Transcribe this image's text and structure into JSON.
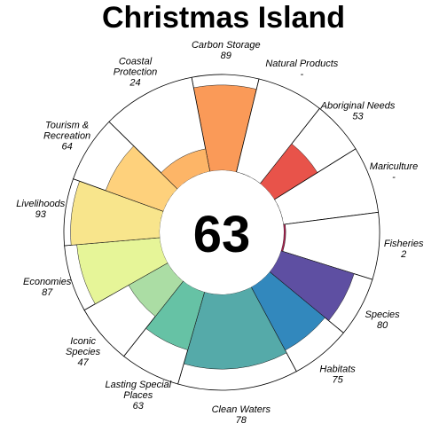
{
  "title": "Christmas Island",
  "chart_data": {
    "type": "flower",
    "title": "Christmas Island",
    "center_score": "63",
    "ylim": [
      0,
      100
    ],
    "petals": [
      {
        "lines": [
          "Carbon Storage"
        ],
        "score": "89",
        "value": 89,
        "weight": 1,
        "color": "#fa9a58"
      },
      {
        "lines": [
          "Natural Products"
        ],
        "score": "-",
        "value": null,
        "weight": 1,
        "color": "#f47044"
      },
      {
        "lines": [
          "Aboriginal Needs"
        ],
        "score": "53",
        "value": 53,
        "weight": 0.8,
        "color": "#e8534a"
      },
      {
        "lines": [
          "Mariculture"
        ],
        "score": "-",
        "value": null,
        "weight": 1,
        "color": "#d53e4f"
      },
      {
        "lines": [
          "Fisheries"
        ],
        "score": "2",
        "value": 2,
        "weight": 1,
        "color": "#a3214d"
      },
      {
        "lines": [
          "Species"
        ],
        "score": "80",
        "value": 80,
        "weight": 0.9,
        "color": "#5e4fa2"
      },
      {
        "lines": [
          "Habitats"
        ],
        "score": "75",
        "value": 75,
        "weight": 0.9,
        "color": "#3288bd"
      },
      {
        "lines": [
          "Clean Waters"
        ],
        "score": "78",
        "value": 78,
        "weight": 1.8,
        "color": "#55aaa9"
      },
      {
        "lines": [
          "Lasting Special",
          "Places"
        ],
        "score": "63",
        "value": 63,
        "weight": 0.9,
        "color": "#66c2a5"
      },
      {
        "lines": [
          "Iconic",
          "Species"
        ],
        "score": "47",
        "value": 47,
        "weight": 0.9,
        "color": "#abdda4"
      },
      {
        "lines": [
          "Economies"
        ],
        "score": "87",
        "value": 87,
        "weight": 1,
        "color": "#e6f598"
      },
      {
        "lines": [
          "Livelihoods"
        ],
        "score": "93",
        "value": 93,
        "weight": 1,
        "color": "#f8e58c"
      },
      {
        "lines": [
          "Tourism &",
          "Recreation"
        ],
        "score": "64",
        "value": 64,
        "weight": 1,
        "color": "#fed17c"
      },
      {
        "lines": [
          "Coastal",
          "Protection"
        ],
        "score": "24",
        "value": 24,
        "weight": 1.4,
        "color": "#fdb567"
      }
    ]
  }
}
